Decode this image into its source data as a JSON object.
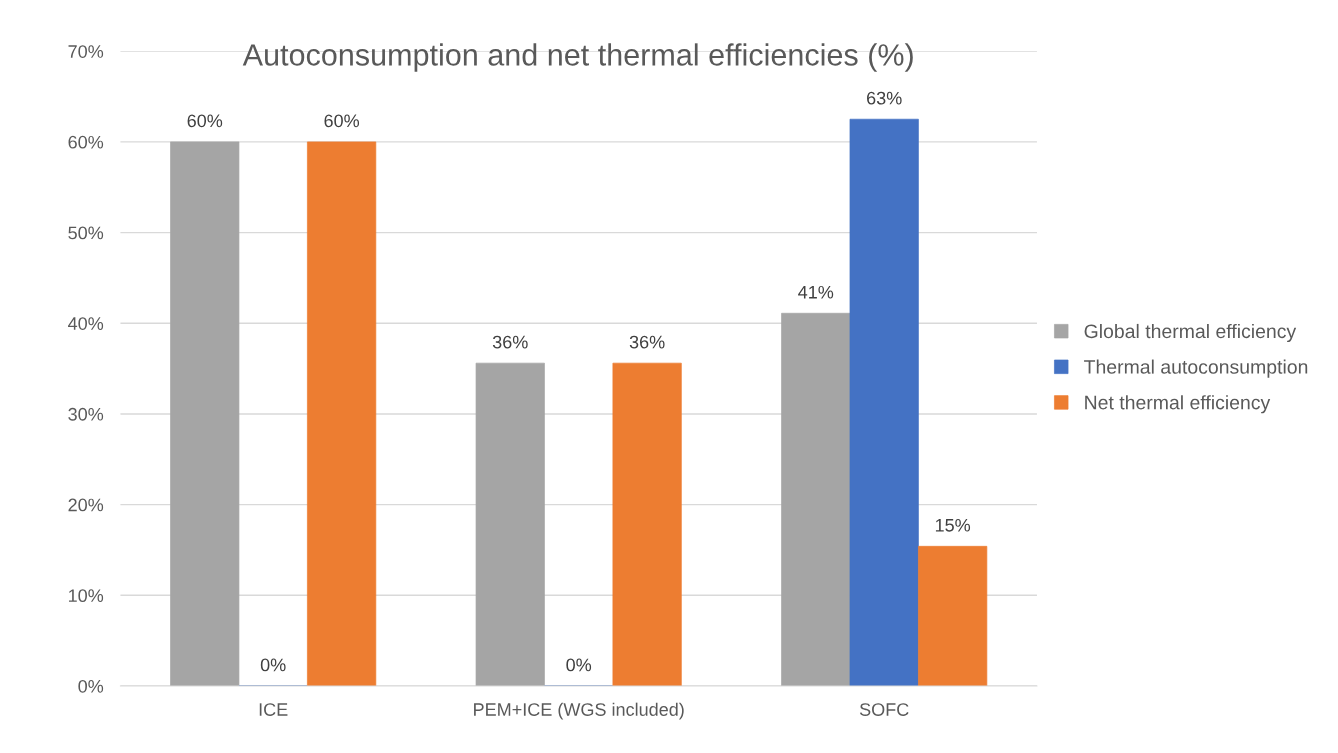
{
  "chart_data": {
    "type": "bar",
    "title": "Autoconsumption and net thermal efficiencies (%)",
    "categories": [
      "ICE",
      "PEM+ICE (WGS included)",
      "SOFC"
    ],
    "series": [
      {
        "name": "Global thermal efficiency",
        "color": "#a5a5a5",
        "values": [
          60,
          35.6,
          41.1
        ],
        "value_labels": [
          "60%",
          "36%",
          "41%"
        ]
      },
      {
        "name": "Thermal autoconsumption",
        "color": "#4472c4",
        "values": [
          0,
          0,
          62.5
        ],
        "value_labels": [
          "0%",
          "0%",
          "63%"
        ]
      },
      {
        "name": "Net thermal efficiency",
        "color": "#ed7d31",
        "values": [
          60,
          35.6,
          15.4
        ],
        "value_labels": [
          "60%",
          "36%",
          "15%"
        ]
      }
    ],
    "ylim": [
      0,
      70
    ],
    "yticks": [
      {
        "value": 0,
        "label": "0%"
      },
      {
        "value": 10,
        "label": "10%"
      },
      {
        "value": 20,
        "label": "20%"
      },
      {
        "value": 30,
        "label": "30%"
      },
      {
        "value": 40,
        "label": "40%"
      },
      {
        "value": 50,
        "label": "50%"
      },
      {
        "value": 60,
        "label": "60%"
      },
      {
        "value": 70,
        "label": "70%"
      }
    ],
    "grid": "y",
    "legend": "right"
  }
}
